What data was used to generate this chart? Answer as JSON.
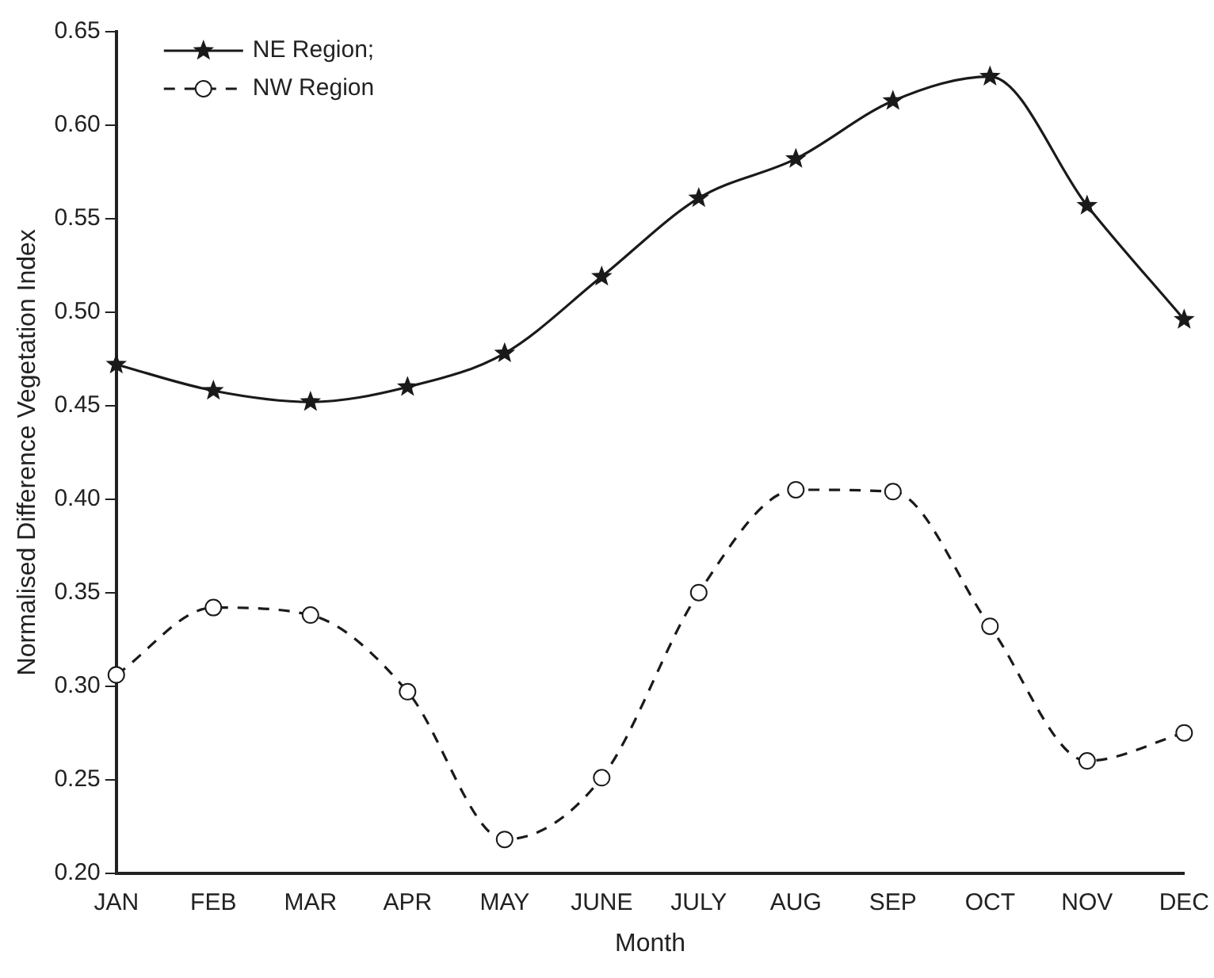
{
  "chart_data": {
    "type": "line",
    "xlabel": "Month",
    "ylabel": "Normalised Difference Vegetation Index",
    "categories": [
      "JAN",
      "FEB",
      "MAR",
      "APR",
      "MAY",
      "JUNE",
      "JULY",
      "AUG",
      "SEP",
      "OCT",
      "NOV",
      "DEC"
    ],
    "series": [
      {
        "name": "NE Region;",
        "color": "#1a1a1a",
        "marker": "star",
        "line_style": "solid",
        "values": [
          0.472,
          0.458,
          0.452,
          0.46,
          0.478,
          0.519,
          0.561,
          0.582,
          0.613,
          0.626,
          0.557,
          0.496
        ]
      },
      {
        "name": "NW Region",
        "color": "#1a1a1a",
        "marker": "circle",
        "line_style": "dashed",
        "values": [
          0.306,
          0.342,
          0.338,
          0.297,
          0.218,
          0.251,
          0.35,
          0.405,
          0.404,
          0.332,
          0.26,
          0.275
        ]
      }
    ],
    "ylim": [
      0.2,
      0.65
    ],
    "yticks": [
      {
        "value": 0.2,
        "label": "0.20"
      },
      {
        "value": 0.25,
        "label": "0.25"
      },
      {
        "value": 0.3,
        "label": "0.30"
      },
      {
        "value": 0.35,
        "label": "0.35"
      },
      {
        "value": 0.4,
        "label": "0.40"
      },
      {
        "value": 0.45,
        "label": "0.45"
      },
      {
        "value": 0.5,
        "label": "0.50"
      },
      {
        "value": 0.55,
        "label": "0.55"
      },
      {
        "value": 0.6,
        "label": "0.60"
      },
      {
        "value": 0.65,
        "label": "0.65"
      }
    ],
    "grid": false,
    "legend": "top left"
  }
}
